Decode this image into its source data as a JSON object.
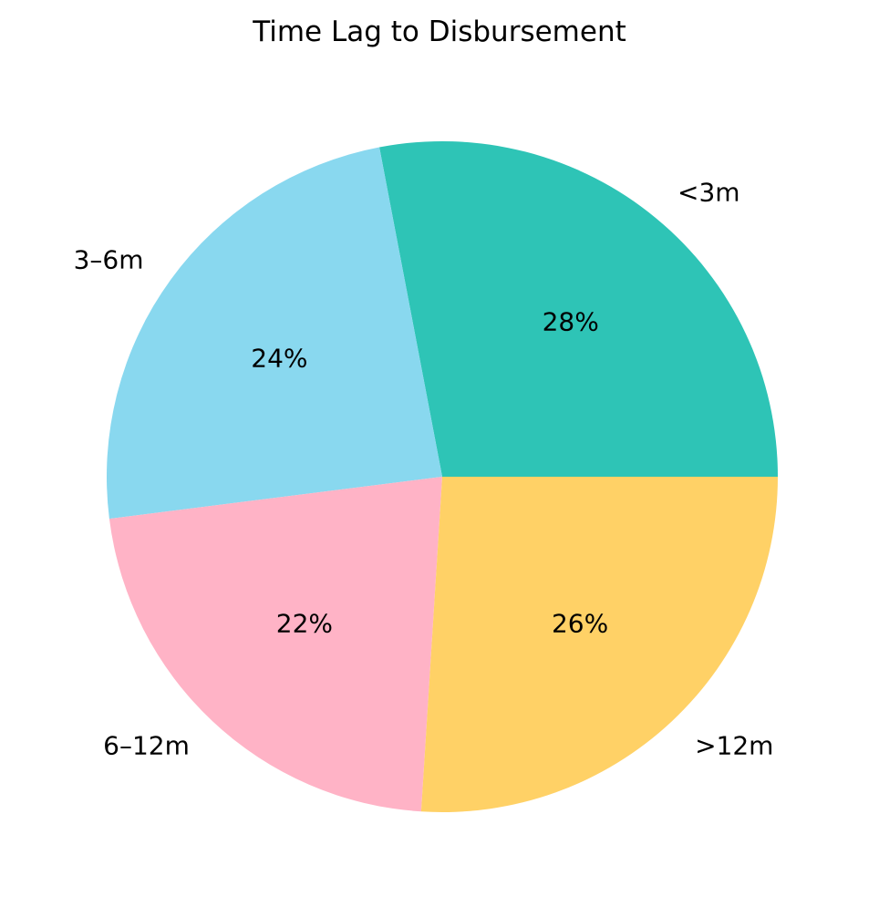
{
  "chart_data": {
    "type": "pie",
    "title": "Time Lag to Disbursement",
    "labels": [
      "<3m",
      "3–6m",
      "6–12m",
      ">12m"
    ],
    "values": [
      28,
      24,
      22,
      26
    ],
    "pct_labels": [
      "28%",
      "24%",
      "22%",
      "26%"
    ],
    "colors": [
      "#2EC4B6",
      "#89D8EF",
      "#FFB3C6",
      "#FFD166"
    ],
    "start_angle_deg": 0,
    "counterclockwise": true,
    "label_radius_frac": 1.1,
    "pct_radius_frac": 0.6,
    "text_color": "#000000",
    "background": "#FFFFFF",
    "legend": "none"
  }
}
